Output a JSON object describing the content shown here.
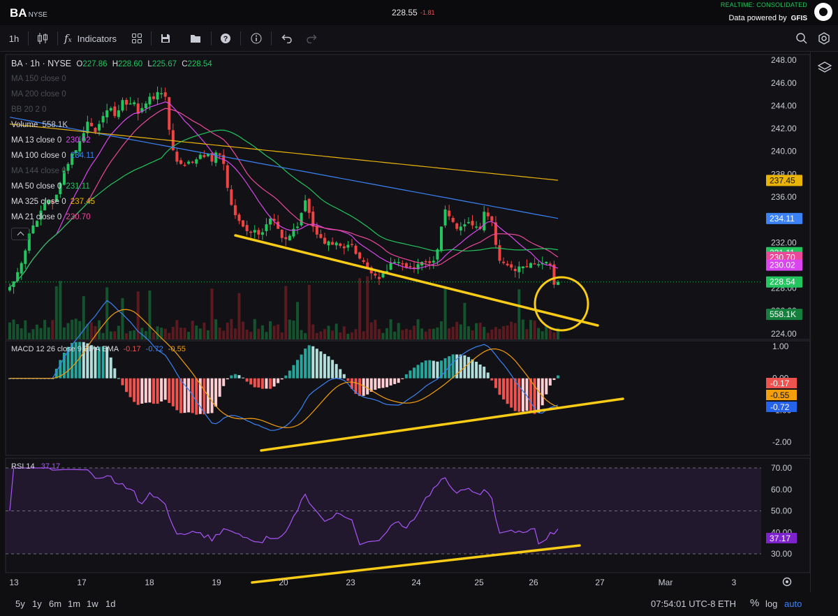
{
  "header": {
    "symbol": "BA",
    "exchange": "NYSE",
    "last_price": "228.55",
    "change": "-1.81",
    "realtime_label": "REALTIME: CONSOLIDATED",
    "data_powered_by": "Data powered by",
    "data_vendor": "GFIS"
  },
  "toolbar": {
    "interval": "1h",
    "indicators_label": "Indicators",
    "icons": [
      "candles-icon",
      "function-icon",
      "layout-grid-icon",
      "save-icon",
      "folder-icon",
      "help-icon",
      "info-icon",
      "undo-icon",
      "redo-icon",
      "search-icon",
      "settings-icon"
    ]
  },
  "legend": {
    "title": "BA · 1h · NYSE",
    "open_label": "O",
    "open": "227.86",
    "high_label": "H",
    "high": "228.60",
    "low_label": "L",
    "low": "225.67",
    "close_label": "C",
    "close": "228.54",
    "studies": [
      {
        "label": "MA 150 close 0",
        "value": "",
        "color": "#4a4d55",
        "muted": true
      },
      {
        "label": "MA 200 close 0",
        "value": "",
        "color": "#4a4d55",
        "muted": true
      },
      {
        "label": "BB 20 2 0",
        "value": "",
        "color": "#4a4d55",
        "muted": true
      },
      {
        "label": "Volume",
        "value": "558.1K",
        "color": "#c9ccd4",
        "muted": false
      },
      {
        "label": "MA 13 close 0",
        "value": "230.02",
        "color": "#d946ef",
        "muted": false
      },
      {
        "label": "MA 100 close 0",
        "value": "234.11",
        "color": "#3b82f6",
        "muted": false
      },
      {
        "label": "MA 144 close 0",
        "value": "",
        "color": "#4a4d55",
        "muted": true
      },
      {
        "label": "MA 50 close 0",
        "value": "231.11",
        "color": "#22c55e",
        "muted": false
      },
      {
        "label": "MA 325 close 0",
        "value": "237.45",
        "color": "#eab308",
        "muted": false
      },
      {
        "label": "MA 21 close 0",
        "value": "230.70",
        "color": "#ec4899",
        "muted": false
      }
    ]
  },
  "price_axis": {
    "ticks": [
      "248.00",
      "246.00",
      "244.00",
      "242.00",
      "240.00",
      "238.00",
      "236.00",
      "234.00",
      "232.00",
      "230.00",
      "228.00",
      "226.00",
      "224.00"
    ],
    "badges": [
      {
        "value": "237.45",
        "price": 237.45,
        "bg": "#eab308",
        "fg": "#111"
      },
      {
        "value": "234.11",
        "price": 234.11,
        "bg": "#3b82f6",
        "fg": "#fff"
      },
      {
        "value": "231.11",
        "price": 231.11,
        "bg": "#22c55e",
        "fg": "#fff"
      },
      {
        "value": "230.70",
        "price": 230.7,
        "bg": "#ec4899",
        "fg": "#fff"
      },
      {
        "value": "230.02",
        "price": 230.02,
        "bg": "#d946ef",
        "fg": "#fff"
      },
      {
        "value": "228.54",
        "price": 228.54,
        "bg": "#22c55e",
        "fg": "#fff"
      },
      {
        "value": "558.1K",
        "price": 225.7,
        "bg": "#15803d",
        "fg": "#fff"
      }
    ]
  },
  "macd": {
    "label": "MACD 12 26 close 9 EMA EMA",
    "hist": "-0.17",
    "macd": "-0.72",
    "signal": "-0.55",
    "ticks": [
      "1.00",
      "0.00",
      "-1.00",
      "-2.00"
    ],
    "badges": [
      {
        "value": "-0.17",
        "v": -0.17,
        "bg": "#ef5350",
        "fg": "#fff"
      },
      {
        "value": "-0.55",
        "v": -0.55,
        "bg": "#f59e0b",
        "fg": "#111"
      },
      {
        "value": "-0.72",
        "v": -0.72,
        "bg": "#2563eb",
        "fg": "#fff"
      }
    ]
  },
  "rsi": {
    "label": "RSI 14",
    "value": "37.17",
    "ticks": [
      "70.00",
      "60.00",
      "50.00",
      "40.00",
      "30.00"
    ]
  },
  "time_axis": {
    "labels": [
      "13",
      "17",
      "18",
      "19",
      "20",
      "23",
      "24",
      "25",
      "26",
      "27",
      "Mar",
      "3"
    ]
  },
  "bottom": {
    "ranges": [
      "5y",
      "1y",
      "6m",
      "1m",
      "1w",
      "1d"
    ],
    "clock": "07:54:01 UTC-8",
    "session": "ETH",
    "percent": "%",
    "log": "log",
    "auto": "auto"
  },
  "chart_data": {
    "type": "candlestick",
    "symbol": "BA",
    "interval": "1h",
    "price_range": [
      223.5,
      248.5
    ],
    "close": [
      228.1,
      228.6,
      229.4,
      230.2,
      231.3,
      232.8,
      233.5,
      233.9,
      234.8,
      235.4,
      235.7,
      235.5,
      236.2,
      237.2,
      238.3,
      238.9,
      239.8,
      240.1,
      240.9,
      241.6,
      242.6,
      242.2,
      241.7,
      242.4,
      243.1,
      243.6,
      243.8,
      243.1,
      243.6,
      244.5,
      244.1,
      244.2,
      244.3,
      243.3,
      243.8,
      244.2,
      244.8,
      244.6,
      245.2,
      245.1,
      244.8,
      241.9,
      240.1,
      239.1,
      238.9,
      238.8,
      239.1,
      239.0,
      239.3,
      239.7,
      239.5,
      239.8,
      239.1,
      239.9,
      239.7,
      238.9,
      236.8,
      235.3,
      234.4,
      233.9,
      233.4,
      233.0,
      232.9,
      233.1,
      232.7,
      232.9,
      233.6,
      234.1,
      233.9,
      233.2,
      232.4,
      232.3,
      232.6,
      233.2,
      233.4,
      234.6,
      235.7,
      234.6,
      233.4,
      232.7,
      232.4,
      231.9,
      232.1,
      231.8,
      232.0,
      231.7,
      231.5,
      231.8,
      231.8,
      231.0,
      230.6,
      230.3,
      229.8,
      229.3,
      229.1,
      228.8,
      229.3,
      229.5,
      230.2,
      230.3,
      230.3,
      230.1,
      229.8,
      229.9,
      229.8,
      230.1,
      230.3,
      230.3,
      230.2,
      230.4,
      231.4,
      233.4,
      234.9,
      234.3,
      233.8,
      233.2,
      233.4,
      233.6,
      233.8,
      233.5,
      233.4,
      233.2,
      234.7,
      234.3,
      233.9,
      231.8,
      230.4,
      230.2,
      230.0,
      229.8,
      229.5,
      229.9,
      229.9,
      229.9,
      230.2,
      230.1,
      230.1,
      230.2,
      230.3,
      230.0,
      228.3,
      228.54
    ],
    "indicators": {
      "MA 13": "230.02",
      "MA 21": "230.70",
      "MA 50": "231.11",
      "MA 100": "234.11",
      "MA 325": "237.45",
      "MACD": {
        "macd": -0.72,
        "signal": -0.55,
        "hist": -0.17
      },
      "RSI 14": 37.17,
      "Volume": "558.1K"
    },
    "x_labels": [
      "13",
      "17",
      "18",
      "19",
      "20",
      "23",
      "24",
      "25",
      "26",
      "27",
      "Mar",
      "3"
    ]
  }
}
